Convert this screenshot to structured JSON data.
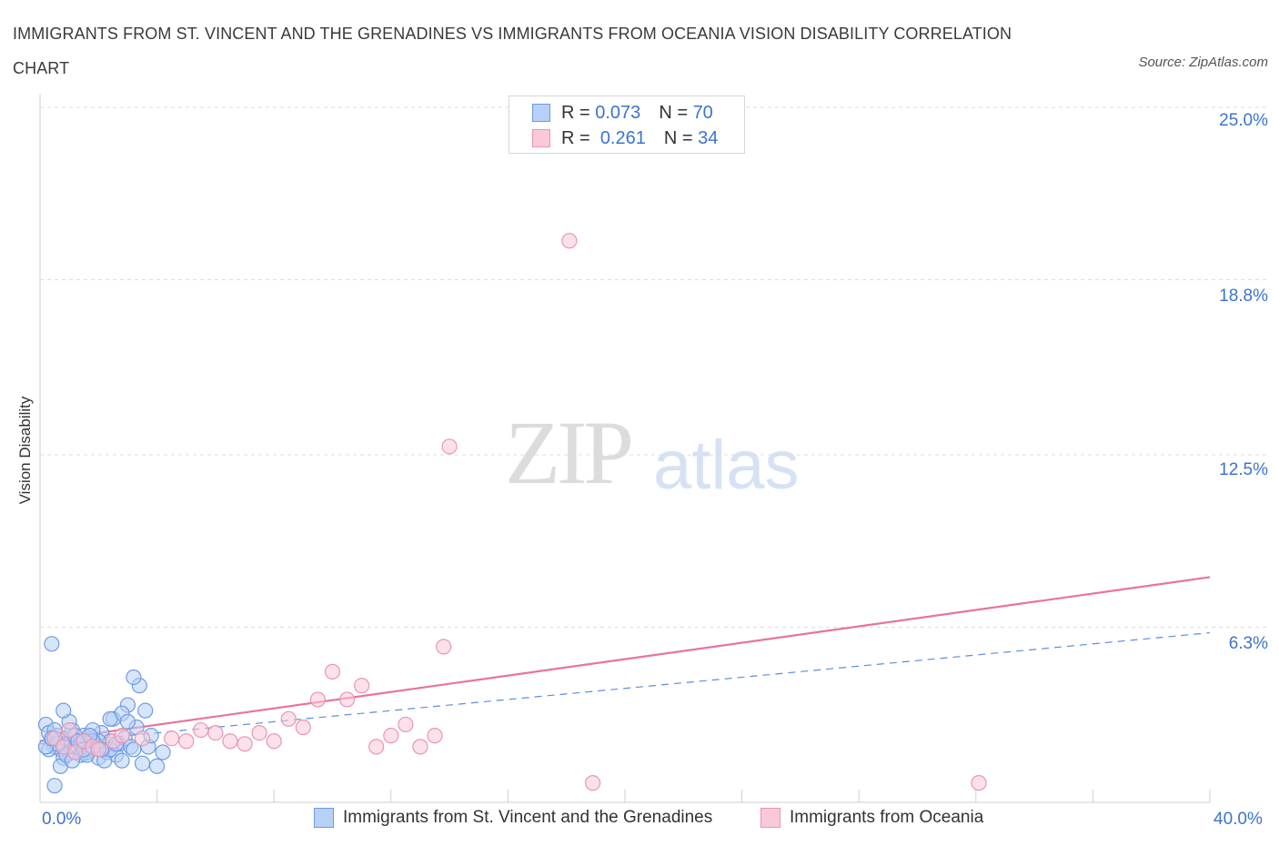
{
  "title": "IMMIGRANTS FROM ST. VINCENT AND THE GRENADINES VS IMMIGRANTS FROM OCEANIA VISION DISABILITY CORRELATION CHART",
  "source": "Source: ZipAtlas.com",
  "watermark": {
    "zip": "ZIP",
    "atlas": "atlas"
  },
  "legend": {
    "r_label": "R =",
    "n_label": "N =",
    "rows": [
      {
        "r": "0.073",
        "n": "70"
      },
      {
        "r": "0.261",
        "n": "34"
      }
    ]
  },
  "colors": {
    "blue": "#6f9be0",
    "blue_fill": "#b7d0f5",
    "pink": "#ea95b1",
    "pink_fill": "#f9c9d8",
    "pink_line": "#e8739c",
    "blue_line": "#5a8fd8",
    "accent_text": "#3b73d1"
  },
  "chart_data": {
    "type": "scatter",
    "title": "IMMIGRANTS FROM ST. VINCENT AND THE GRENADINES VS IMMIGRANTS FROM OCEANIA VISION DISABILITY CORRELATION CHART",
    "xlabel": "",
    "ylabel": "Vision Disability",
    "xlim": [
      0,
      40
    ],
    "ylim": [
      0,
      25
    ],
    "x_tick_labels": [
      "0.0%",
      "40.0%"
    ],
    "y_ticks": [
      6.3,
      12.5,
      18.8,
      25.0
    ],
    "y_tick_labels": [
      "6.3%",
      "12.5%",
      "18.8%",
      "25.0%"
    ],
    "grid": true,
    "legend_position": "top-center",
    "series": [
      {
        "name": "Immigrants from St. Vincent and the Grenadines",
        "color": "#6f9be0",
        "r": 0.073,
        "n": 70,
        "trend": {
          "x": [
            0,
            40
          ],
          "y": [
            2.1,
            6.1
          ],
          "style": "dashed"
        },
        "points": [
          [
            0.2,
            2.8
          ],
          [
            0.3,
            2.5
          ],
          [
            0.4,
            2.2
          ],
          [
            0.5,
            2.0
          ],
          [
            0.6,
            2.4
          ],
          [
            0.7,
            1.9
          ],
          [
            0.8,
            2.1
          ],
          [
            0.9,
            2.3
          ],
          [
            1.0,
            1.8
          ],
          [
            1.1,
            2.6
          ],
          [
            1.2,
            2.0
          ],
          [
            1.3,
            2.2
          ],
          [
            1.4,
            1.7
          ],
          [
            1.5,
            2.4
          ],
          [
            1.6,
            2.0
          ],
          [
            1.7,
            1.9
          ],
          [
            1.8,
            2.3
          ],
          [
            1.9,
            2.1
          ],
          [
            2.0,
            1.6
          ],
          [
            2.1,
            2.5
          ],
          [
            2.2,
            2.0
          ],
          [
            2.3,
            1.8
          ],
          [
            2.4,
            2.2
          ],
          [
            2.5,
            3.0
          ],
          [
            2.6,
            1.7
          ],
          [
            2.7,
            2.1
          ],
          [
            2.8,
            1.5
          ],
          [
            2.9,
            2.3
          ],
          [
            3.0,
            3.5
          ],
          [
            3.1,
            2.0
          ],
          [
            3.2,
            1.9
          ],
          [
            3.3,
            2.7
          ],
          [
            3.4,
            4.2
          ],
          [
            3.5,
            1.4
          ],
          [
            3.6,
            3.3
          ],
          [
            3.7,
            2.0
          ],
          [
            3.8,
            2.4
          ],
          [
            4.0,
            1.3
          ],
          [
            4.2,
            1.8
          ],
          [
            0.3,
            1.9
          ],
          [
            0.5,
            2.6
          ],
          [
            0.8,
            1.6
          ],
          [
            1.0,
            2.9
          ],
          [
            1.2,
            2.4
          ],
          [
            1.4,
            2.1
          ],
          [
            1.6,
            1.8
          ],
          [
            1.8,
            2.6
          ],
          [
            2.0,
            2.2
          ],
          [
            2.2,
            1.5
          ],
          [
            2.4,
            1.9
          ],
          [
            0.4,
            5.7
          ],
          [
            1.6,
            1.7
          ],
          [
            1.8,
            2.2
          ],
          [
            0.6,
            2.1
          ],
          [
            0.7,
            1.3
          ],
          [
            0.9,
            1.7
          ],
          [
            1.1,
            1.5
          ],
          [
            1.3,
            2.2
          ],
          [
            1.5,
            1.9
          ],
          [
            1.7,
            2.4
          ],
          [
            0.5,
            0.6
          ],
          [
            0.8,
            3.3
          ],
          [
            2.6,
            2.1
          ],
          [
            2.8,
            3.2
          ],
          [
            3.0,
            2.9
          ],
          [
            3.2,
            4.5
          ],
          [
            0.2,
            2.0
          ],
          [
            0.4,
            2.3
          ],
          [
            2.4,
            3.0
          ],
          [
            2.1,
            1.9
          ]
        ]
      },
      {
        "name": "Immigrants from Oceania",
        "color": "#ea95b1",
        "r": 0.261,
        "n": 34,
        "trend": {
          "x": [
            0,
            40
          ],
          "y": [
            2.2,
            8.1
          ],
          "style": "solid"
        },
        "points": [
          [
            0.5,
            2.3
          ],
          [
            0.8,
            2.0
          ],
          [
            1.0,
            2.6
          ],
          [
            1.2,
            1.8
          ],
          [
            1.5,
            2.2
          ],
          [
            1.8,
            2.0
          ],
          [
            2.0,
            1.9
          ],
          [
            2.5,
            2.2
          ],
          [
            2.8,
            2.4
          ],
          [
            3.5,
            2.3
          ],
          [
            4.5,
            2.3
          ],
          [
            5.0,
            2.2
          ],
          [
            5.5,
            2.6
          ],
          [
            6.0,
            2.5
          ],
          [
            6.5,
            2.2
          ],
          [
            7.0,
            2.1
          ],
          [
            7.5,
            2.5
          ],
          [
            8.0,
            2.2
          ],
          [
            8.5,
            3.0
          ],
          [
            9.0,
            2.7
          ],
          [
            9.5,
            3.7
          ],
          [
            10.0,
            4.7
          ],
          [
            10.5,
            3.7
          ],
          [
            11.0,
            4.2
          ],
          [
            11.5,
            2.0
          ],
          [
            12.0,
            2.4
          ],
          [
            12.5,
            2.8
          ],
          [
            13.0,
            2.0
          ],
          [
            13.5,
            2.4
          ],
          [
            13.8,
            5.6
          ],
          [
            14.0,
            12.8
          ],
          [
            18.1,
            20.2
          ],
          [
            18.9,
            0.7
          ],
          [
            32.1,
            0.7
          ]
        ]
      }
    ]
  },
  "bottom_legend": [
    "Immigrants from St. Vincent and the Grenadines",
    "Immigrants from Oceania"
  ]
}
